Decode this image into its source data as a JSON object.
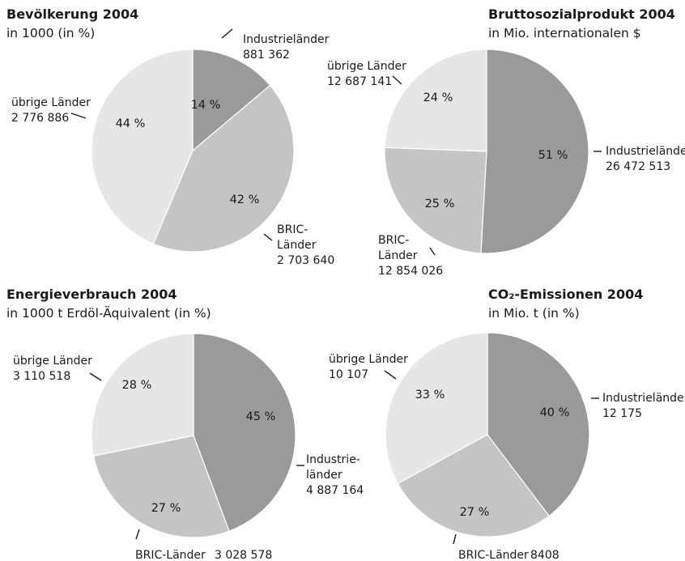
{
  "chart_data": [
    {
      "type": "pie",
      "title": "Bevölkerung 2004",
      "subtitle": "in 1000 (in %)",
      "slices": [
        {
          "name": "Industrieländer",
          "value": 881362,
          "percent": 14,
          "label_lines": [
            "Industrieländer",
            "881 362"
          ],
          "color": "#9a9a9a"
        },
        {
          "name": "BRIC-Länder",
          "value": 2703640,
          "percent": 42,
          "label_lines": [
            "BRIC-",
            "Länder",
            "2 703 640"
          ],
          "color": "#c4c4c4"
        },
        {
          "name": "übrige Länder",
          "value": 2776886,
          "percent": 44,
          "label_lines": [
            "übrige Länder",
            "2 776 886"
          ],
          "color": "#e6e6e6"
        }
      ]
    },
    {
      "type": "pie",
      "title": "Bruttosozialprodukt 2004",
      "subtitle": "in Mio. internationalen $",
      "slices": [
        {
          "name": "Industrieländer",
          "value": 26472513,
          "percent": 51,
          "label_lines": [
            "Industrieländer",
            "26 472 513"
          ],
          "color": "#9a9a9a"
        },
        {
          "name": "BRIC-Länder",
          "value": 12854026,
          "percent": 25,
          "label_lines": [
            "BRIC-",
            "Länder",
            "12 854 026"
          ],
          "color": "#c4c4c4"
        },
        {
          "name": "übrige Länder",
          "value": 12687141,
          "percent": 24,
          "label_lines": [
            "übrige Länder",
            "12 687 141"
          ],
          "color": "#e6e6e6"
        }
      ]
    },
    {
      "type": "pie",
      "title": "Energieverbrauch 2004",
      "subtitle": "in 1000 t Erdöl-Äquivalent (in %)",
      "slices": [
        {
          "name": "Industrieländer",
          "value": 4887164,
          "percent": 45,
          "label_lines": [
            "Industrie-",
            "länder",
            "4 887 164"
          ],
          "color": "#9a9a9a"
        },
        {
          "name": "BRIC-Länder",
          "value": 3028578,
          "percent": 27,
          "label_lines": [
            "BRIC-Länder",
            "3 028 578"
          ],
          "color": "#c4c4c4"
        },
        {
          "name": "übrige Länder",
          "value": 3110518,
          "percent": 28,
          "label_lines": [
            "übrige Länder",
            "3 110 518"
          ],
          "color": "#e6e6e6"
        }
      ]
    },
    {
      "type": "pie",
      "title": "CO₂-Emissionen 2004",
      "subtitle": "in Mio. t (in %)",
      "slices": [
        {
          "name": "Industrieländer",
          "value": 12175,
          "percent": 40,
          "label_lines": [
            "Industrieländer",
            "12 175"
          ],
          "color": "#9a9a9a"
        },
        {
          "name": "BRIC-Länder",
          "value": 8408,
          "percent": 27,
          "label_lines": [
            "BRIC-Länder",
            "8408"
          ],
          "color": "#c4c4c4"
        },
        {
          "name": "übrige Länder",
          "value": 10107,
          "percent": 33,
          "label_lines": [
            "übrige Länder",
            "10 107"
          ],
          "color": "#e6e6e6"
        }
      ]
    }
  ]
}
